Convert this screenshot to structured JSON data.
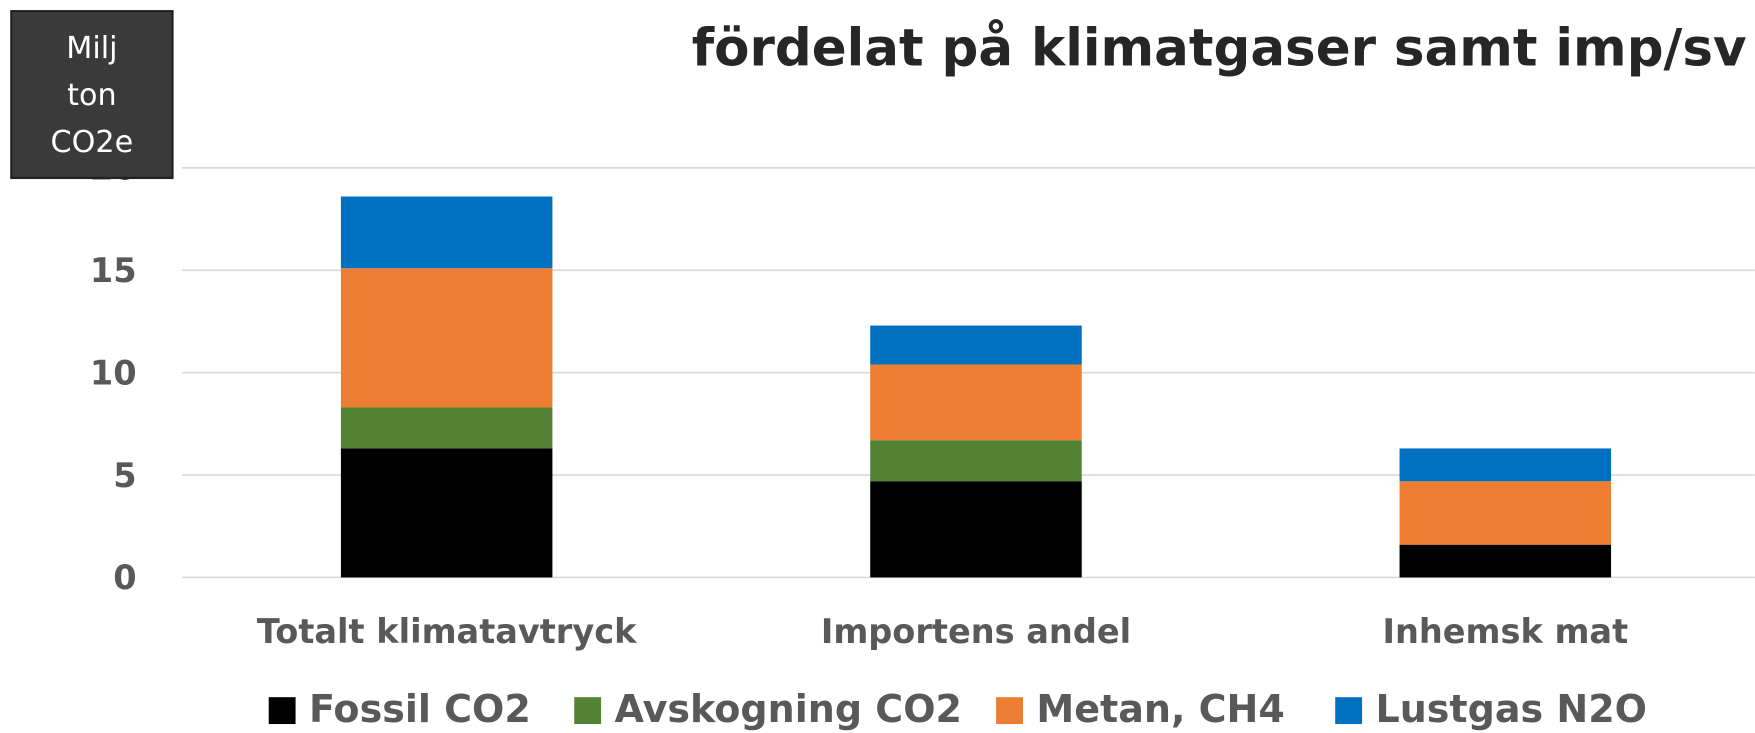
{
  "chart_data": {
    "type": "stacked_bar",
    "title": "fördelat på klimatgaser samt imp/sv",
    "y_label": "Milj ton CO2e",
    "categories": [
      "Totalt klimatavtryck",
      "Importens andel",
      "Inhemsk mat"
    ],
    "series": [
      {
        "name": "Fossil CO2",
        "color": "#000000",
        "values": [
          6.3,
          4.7,
          1.6
        ]
      },
      {
        "name": "Avskogning CO2",
        "color": "#548235",
        "values": [
          2.0,
          2.0,
          0
        ]
      },
      {
        "name": "Metan, CH4",
        "color": "#ed7d31",
        "values": [
          6.8,
          3.7,
          3.1
        ]
      },
      {
        "name": "Lustgas N2O",
        "color": "#0070c0",
        "values": [
          3.5,
          1.9,
          1.6
        ]
      }
    ],
    "ylim": [
      0,
      20
    ],
    "yticks": [
      0,
      5,
      10,
      15,
      20
    ],
    "grid": true,
    "legend": "bottom"
  }
}
